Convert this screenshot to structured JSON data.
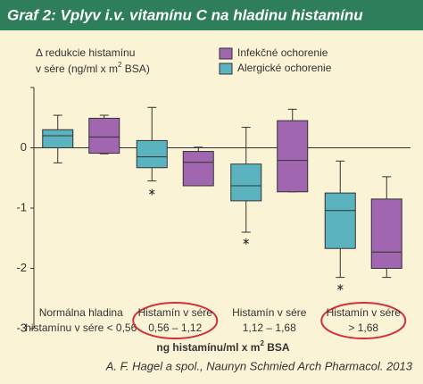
{
  "chart_data": {
    "type": "box",
    "title": "Graf 2: Vplyv i.v. vitamínu C na hladinu histamínu",
    "y_label": {
      "line1": "Δ redukcie histamínu",
      "line2": "v sére (ng/ml x m",
      "sup": "2",
      "line2_end": " BSA)"
    },
    "x_label": {
      "text": "ng histamínu/ml x m",
      "sup": "2",
      "end": " BSA"
    },
    "categories": [
      [
        "Normálna hladina",
        "histamínu v sére < 0,56"
      ],
      [
        "Histamín v sére",
        "0,56 – 1,12"
      ],
      [
        "Histamín v sére",
        "1,12 – 1,68"
      ],
      [
        "Histamín v sére",
        "> 1,68"
      ]
    ],
    "circled": [
      false,
      true,
      false,
      true
    ],
    "series": [
      {
        "name": "Alergické ochorenie",
        "color": "#5bb3bf",
        "whislo": [
          -0.25,
          -0.55,
          -1.4,
          -2.15
        ],
        "q1": [
          0,
          -0.33,
          -0.88,
          -1.67
        ],
        "med": [
          0.2,
          -0.15,
          -0.63,
          -1.04
        ],
        "q3": [
          0.3,
          0.12,
          -0.27,
          -0.75
        ],
        "whishi": [
          0.54,
          0.67,
          0.34,
          -0.22
        ],
        "outliers": [
          [],
          [
            -0.69
          ],
          [
            -1.51
          ],
          [
            -2.27
          ]
        ]
      },
      {
        "name": "Infekčné ochorenie",
        "color": "#a066b0",
        "whislo": [
          -0.1,
          -0.63,
          -0.73,
          -2.15
        ],
        "q1": [
          -0.09,
          -0.63,
          -0.73,
          -2.0
        ],
        "med": [
          0.18,
          -0.24,
          -0.21,
          -1.73
        ],
        "q3": [
          0.49,
          -0.06,
          0.45,
          -0.85
        ],
        "whishi": [
          0.54,
          0.01,
          0.64,
          -0.48
        ],
        "outliers": [
          [],
          [],
          [],
          []
        ]
      }
    ],
    "legend_order": [
      1,
      0
    ],
    "ylim": [
      -3,
      1
    ],
    "yticks": [
      -3,
      -2,
      -1,
      0
    ],
    "source": "A. F. Hagel a spol., Naunyn Schmied Arch Pharmacol. 2013"
  }
}
